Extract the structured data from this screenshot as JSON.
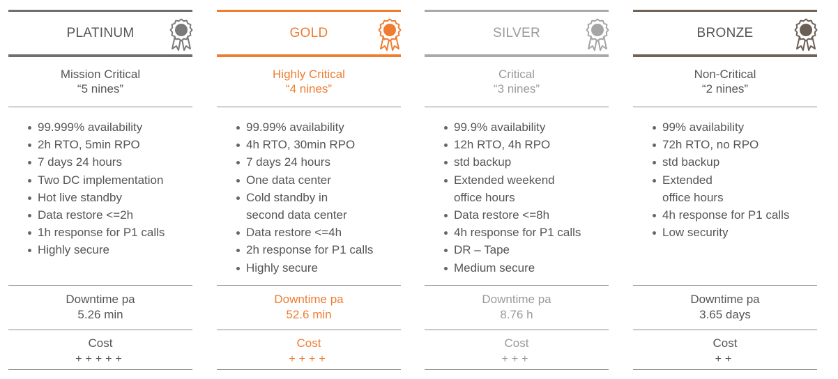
{
  "tiers": [
    {
      "name": "PLATINUM",
      "accent": "#6e6e6e",
      "text_color": "#555555",
      "medal_color": "#7a7a7a",
      "medal_icon": "award-ribbon-icon",
      "criticality": "Mission Critical",
      "nines": "“5 nines”",
      "features": [
        {
          "text": "99.999% availability",
          "bullet": true
        },
        {
          "text": "2h RTO, 5min RPO",
          "bullet": true
        },
        {
          "text": "7 days 24 hours",
          "bullet": true
        },
        {
          "text": "Two DC implementation",
          "bullet": true
        },
        {
          "text": "Hot live standby",
          "bullet": true
        },
        {
          "text": "Data restore <=2h",
          "bullet": true
        },
        {
          "text": "1h response for P1 calls",
          "bullet": true
        },
        {
          "text": "Highly secure",
          "bullet": true
        }
      ],
      "downtime_label": "Downtime pa",
      "downtime_value": "5.26 min",
      "cost_label": "Cost",
      "cost_value": "+++++"
    },
    {
      "name": "GOLD",
      "accent": "#ee7d31",
      "text_color": "#ee7d31",
      "medal_color": "#ee7d31",
      "medal_icon": "award-ribbon-icon",
      "criticality": "Highly Critical",
      "nines": "“4 nines”",
      "features": [
        {
          "text": "99.99% availability",
          "bullet": true
        },
        {
          "text": "4h RTO, 30min RPO",
          "bullet": true
        },
        {
          "text": "7 days 24 hours",
          "bullet": true
        },
        {
          "text": "One data center",
          "bullet": true
        },
        {
          "text": "Cold standby in",
          "bullet": true
        },
        {
          "text": "second data center",
          "bullet": false
        },
        {
          "text": "Data restore <=4h",
          "bullet": true
        },
        {
          "text": "2h response for P1 calls",
          "bullet": true
        },
        {
          "text": "Highly secure",
          "bullet": true
        }
      ],
      "downtime_label": "Downtime pa",
      "downtime_value": "52.6 min",
      "cost_label": "Cost",
      "cost_value": "++++"
    },
    {
      "name": "SILVER",
      "accent": "#a9a9a9",
      "text_color": "#9a9a9a",
      "medal_color": "#a5a5a5",
      "medal_icon": "award-ribbon-icon",
      "criticality": "Critical",
      "nines": "“3 nines”",
      "features": [
        {
          "text": "99.9% availability",
          "bullet": true
        },
        {
          "text": "12h RTO, 4h RPO",
          "bullet": true
        },
        {
          "text": "std backup",
          "bullet": true
        },
        {
          "text": "Extended weekend",
          "bullet": true
        },
        {
          "text": "office hours",
          "bullet": false
        },
        {
          "text": "Data restore <=8h",
          "bullet": true
        },
        {
          "text": "4h response for P1 calls",
          "bullet": true
        },
        {
          "text": "DR – Tape",
          "bullet": true
        },
        {
          "text": "Medium secure",
          "bullet": true
        }
      ],
      "downtime_label": "Downtime pa",
      "downtime_value": "8.76 h",
      "cost_label": "Cost",
      "cost_value": "+++"
    },
    {
      "name": "BRONZE",
      "accent": "#6f6358",
      "text_color": "#555555",
      "medal_color": "#6a5f55",
      "medal_icon": "award-ribbon-icon",
      "criticality": "Non-Critical",
      "nines": "“2 nines”",
      "features": [
        {
          "text": "99% availability",
          "bullet": true
        },
        {
          "text": "72h RTO, no RPO",
          "bullet": true
        },
        {
          "text": "std backup",
          "bullet": true
        },
        {
          "text": "Extended",
          "bullet": true
        },
        {
          "text": "office hours",
          "bullet": false
        },
        {
          "text": "4h response for P1 calls",
          "bullet": true
        },
        {
          "text": "Low security",
          "bullet": true
        }
      ],
      "downtime_label": "Downtime pa",
      "downtime_value": "3.65 days",
      "cost_label": "Cost",
      "cost_value": "++"
    }
  ]
}
